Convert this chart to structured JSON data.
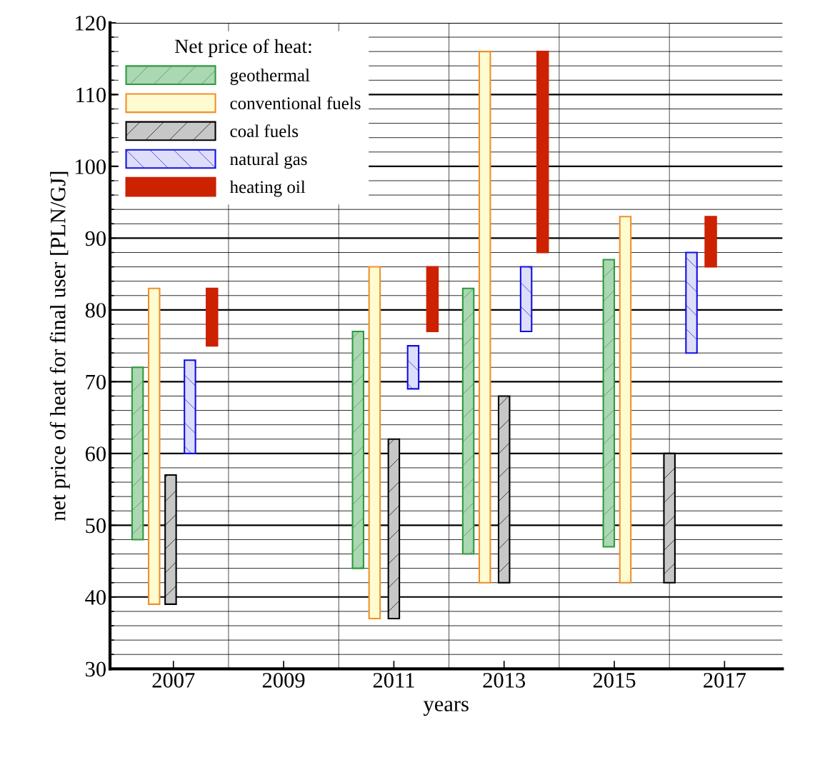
{
  "chart_data": {
    "type": "bar",
    "xlabel": "years",
    "ylabel": "net price of heat for final user [PLN/GJ]",
    "legend_title": "Net price of heat:",
    "legend": "top left",
    "grid": true,
    "xlim": [
      2005.85,
      2018.05
    ],
    "ylim": [
      30,
      120
    ],
    "xticks": [
      2007,
      {
        "value": 2008,
        "label": null
      },
      2009,
      {
        "value": 2010,
        "label": null
      },
      2011,
      {
        "value": 2012,
        "label": null
      },
      2013,
      {
        "value": 2014,
        "label": null
      },
      2015,
      {
        "value": 2016,
        "label": null
      },
      2017
    ],
    "yticks": [
      30,
      {
        "value": 32,
        "label": null
      },
      {
        "value": 34,
        "label": null
      },
      {
        "value": 36,
        "label": null
      },
      {
        "value": 38,
        "label": null
      },
      40,
      {
        "value": 42,
        "label": null
      },
      {
        "value": 44,
        "label": null
      },
      {
        "value": 46,
        "label": null
      },
      {
        "value": 48,
        "label": null
      },
      50,
      {
        "value": 52,
        "label": null
      },
      {
        "value": 54,
        "label": null
      },
      {
        "value": 56,
        "label": null
      },
      {
        "value": 58,
        "label": null
      },
      60,
      {
        "value": 62,
        "label": null
      },
      {
        "value": 64,
        "label": null
      },
      {
        "value": 66,
        "label": null
      },
      {
        "value": 68,
        "label": null
      },
      70,
      {
        "value": 72,
        "label": null
      },
      {
        "value": 74,
        "label": null
      },
      {
        "value": 76,
        "label": null
      },
      {
        "value": 78,
        "label": null
      },
      80,
      {
        "value": 82,
        "label": null
      },
      {
        "value": 84,
        "label": null
      },
      {
        "value": 86,
        "label": null
      },
      {
        "value": 88,
        "label": null
      },
      90,
      {
        "value": 92,
        "label": null
      },
      {
        "value": 94,
        "label": null
      },
      {
        "value": 96,
        "label": null
      },
      {
        "value": 98,
        "label": null
      },
      100,
      {
        "value": 102,
        "label": null
      },
      {
        "value": 104,
        "label": null
      },
      {
        "value": 106,
        "label": null
      },
      {
        "value": 108,
        "label": null
      },
      110,
      {
        "value": 112,
        "label": null
      },
      {
        "value": 114,
        "label": null
      },
      {
        "value": 116,
        "label": null
      },
      {
        "value": 118,
        "label": null
      },
      120
    ],
    "series": [
      {
        "name": "geothermal",
        "color": "#2e9a3e",
        "x": [
          2006.35,
          2010.35,
          2012.35,
          2014.9
        ],
        "base": [
          48,
          44,
          46,
          47
        ],
        "values": [
          24,
          33,
          37,
          40
        ]
      },
      {
        "name": "conventional fuels",
        "color": "#f0902a",
        "x": [
          2006.65,
          2010.65,
          2012.65,
          2015.2
        ],
        "base": [
          39,
          37,
          42,
          42
        ],
        "values": [
          44,
          49,
          74,
          51
        ]
      },
      {
        "name": "coal fuels",
        "color": "#000000",
        "x": [
          2006.95,
          2011.0,
          2013.0,
          2016.0
        ],
        "base": [
          39,
          37,
          42,
          42
        ],
        "values": [
          18,
          25,
          26,
          18
        ]
      },
      {
        "name": "natural gas",
        "color": "#1010e0",
        "x": [
          2007.3,
          2011.35,
          2013.4,
          2016.4
        ],
        "base": [
          60,
          69,
          77,
          74
        ],
        "values": [
          13,
          6,
          9,
          14
        ]
      },
      {
        "name": "heating oil",
        "color": "#cc2200",
        "x": [
          2007.7,
          2011.7,
          2013.7,
          2016.75
        ],
        "base": [
          75,
          77,
          88,
          86
        ],
        "values": [
          8,
          9,
          28,
          7
        ]
      }
    ]
  }
}
